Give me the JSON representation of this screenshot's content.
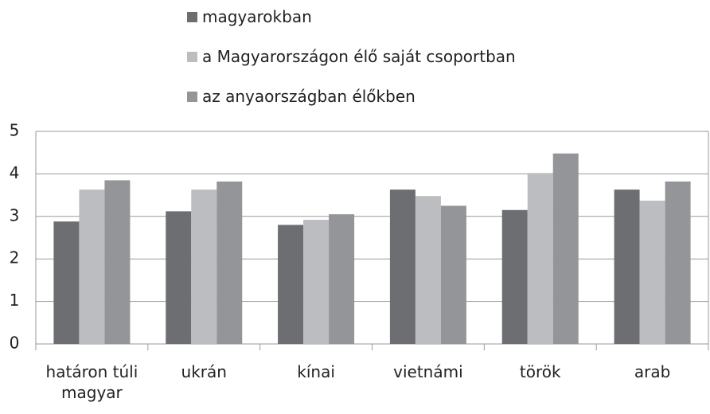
{
  "chart_data": {
    "type": "bar",
    "categories": [
      "határon túli magyar",
      "ukrán",
      "kínai",
      "vietnámi",
      "török",
      "arab"
    ],
    "series": [
      {
        "name": "magyarokban",
        "color": "#6d6e71",
        "values": [
          2.88,
          3.12,
          2.8,
          3.63,
          3.15,
          3.63
        ]
      },
      {
        "name": "a Magyarországon élő saját csoportban",
        "color": "#bcbdc0",
        "values": [
          3.63,
          3.63,
          2.92,
          3.48,
          4.02,
          3.37
        ]
      },
      {
        "name": "az anyaországban élőkben",
        "color": "#939598",
        "values": [
          3.85,
          3.82,
          3.05,
          3.25,
          4.48,
          3.82
        ]
      }
    ],
    "ylim": [
      0,
      5
    ],
    "yticks": [
      0,
      1,
      2,
      3,
      4,
      5
    ],
    "grid": true,
    "legend": "top"
  }
}
